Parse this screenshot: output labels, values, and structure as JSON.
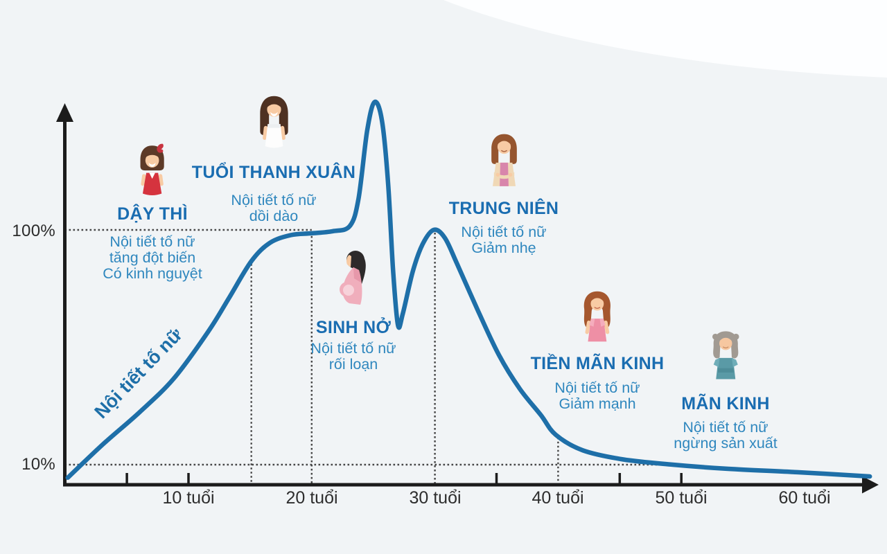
{
  "chart_data": {
    "type": "line",
    "title": "",
    "x_unit_label": "tuổi",
    "x_range_years": [
      0,
      66
    ],
    "y_range_pct": [
      0,
      155
    ],
    "grid": "dotted-guides-only",
    "curve_color": "#1e6fa8",
    "series": [
      {
        "name": "Nội tiết tố nữ",
        "unit": "%",
        "points_age_pct": [
          [
            0.2,
            5
          ],
          [
            3.1,
            18
          ],
          [
            6,
            30
          ],
          [
            8.8,
            43
          ],
          [
            11.6,
            61
          ],
          [
            13.3,
            74
          ],
          [
            15.1,
            88
          ],
          [
            16.6,
            95
          ],
          [
            18.3,
            98
          ],
          [
            20,
            98.7
          ],
          [
            21.7,
            99.5
          ],
          [
            23.1,
            101.5
          ],
          [
            23.8,
            112
          ],
          [
            24.5,
            138
          ],
          [
            25.1,
            149
          ],
          [
            25.7,
            142
          ],
          [
            26.2,
            118
          ],
          [
            26.6,
            85
          ],
          [
            27,
            63.5
          ],
          [
            27.4,
            68
          ],
          [
            28.2,
            84
          ],
          [
            29,
            94.5
          ],
          [
            29.9,
            100
          ],
          [
            30.8,
            97
          ],
          [
            31.8,
            87
          ],
          [
            33.5,
            69
          ],
          [
            35.2,
            52
          ],
          [
            36.9,
            39
          ],
          [
            38.6,
            29
          ],
          [
            39.8,
            21.5
          ],
          [
            42,
            15.5
          ],
          [
            45.3,
            12
          ],
          [
            49.3,
            10
          ],
          [
            53.8,
            8.4
          ],
          [
            59.4,
            7.1
          ],
          [
            65.3,
            5.5
          ]
        ]
      }
    ],
    "x_ticks": [
      {
        "age": 10,
        "label": "10 tuổi"
      },
      {
        "age": 20,
        "label": "20 tuổi"
      },
      {
        "age": 30,
        "label": "30 tuổi"
      },
      {
        "age": 40,
        "label": "40 tuổi"
      },
      {
        "age": 50,
        "label": "50 tuổi"
      },
      {
        "age": 60,
        "label": "60 tuổi"
      }
    ],
    "y_ticks": [
      {
        "pct": 100,
        "label": "100%"
      },
      {
        "pct": 10,
        "label": "10%"
      }
    ],
    "minor_tick_ages": [
      5,
      10,
      35,
      45,
      50
    ],
    "guides": {
      "horizontal": [
        {
          "pct": 100,
          "from_age": 0,
          "to_age": 20
        },
        {
          "pct": 10,
          "from_age": 0,
          "to_age": 49.3
        }
      ],
      "vertical": [
        {
          "age": 15.1,
          "top_pct": 88
        },
        {
          "age": 20,
          "top_pct": 98.7
        },
        {
          "age": 30,
          "top_pct": 100
        },
        {
          "age": 40,
          "top_pct": 21.5
        }
      ]
    }
  },
  "curve_label": "Nội tiết tố nữ",
  "stages": [
    {
      "id": "day-thi",
      "title": "DẬY THÌ",
      "lines": [
        "Nội tiết tố nữ",
        "tăng đột biến",
        "Có kinh nguyệt"
      ]
    },
    {
      "id": "thanh-xuan",
      "title": "TUỔI THANH XUÂN",
      "lines": [
        "Nội tiết tố nữ",
        "dồi dào"
      ]
    },
    {
      "id": "sinh-no",
      "title": "SINH NỞ",
      "lines": [
        "Nội tiết tố nữ",
        "rối loạn"
      ]
    },
    {
      "id": "trung-nien",
      "title": "TRUNG NIÊN",
      "lines": [
        "Nội tiết tố nữ",
        "Giảm nhẹ"
      ]
    },
    {
      "id": "tien-man-kinh",
      "title": "TIỀN MÃN KINH",
      "lines": [
        "Nội tiết tố nữ",
        "Giảm mạnh"
      ]
    },
    {
      "id": "man-kinh",
      "title": "MÃN KINH",
      "lines": [
        "Nội tiết tố nữ",
        "ngừng sản xuất"
      ]
    }
  ],
  "colors": {
    "curve": "#1e6fa8",
    "heading_text": "#1a6db1",
    "body_text": "#2f87be",
    "axis": "#1c1c1c",
    "guide": "#454545",
    "background": "#f1f4f6",
    "tick_label": "#2d2d2d"
  }
}
